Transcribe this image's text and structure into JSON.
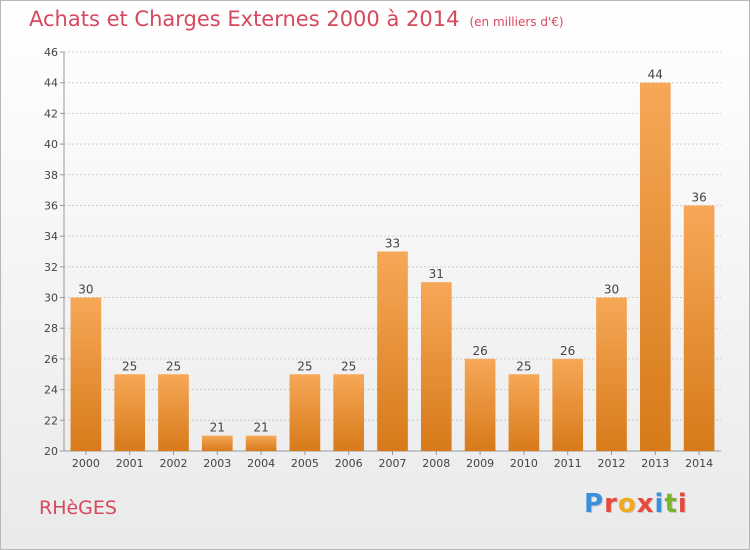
{
  "header": {
    "title": "Achats et Charges Externes 2000 à 2014",
    "subtitle": "(en milliers d'€)"
  },
  "footer": {
    "commune": "RHèGES",
    "logo_letters": [
      "P",
      "r",
      "o",
      "x",
      "i",
      "t",
      "i"
    ],
    "logo_colors": [
      "#3a8fd9",
      "#e8483c",
      "#f2a81c",
      "#e8483c",
      "#3a8fd9",
      "#7bb32e",
      "#e8483c"
    ]
  },
  "colors": {
    "bar_top": "#f6a857",
    "bar_bottom": "#d77a1a",
    "grid": "#cccccc",
    "axis": "#999999",
    "accent": "#d6485e"
  },
  "chart_data": {
    "type": "bar",
    "title": "Achats et Charges Externes 2000 à 2014",
    "subtitle": "(en milliers d'€)",
    "xlabel": "",
    "ylabel": "",
    "categories": [
      "2000",
      "2001",
      "2002",
      "2003",
      "2004",
      "2005",
      "2006",
      "2007",
      "2008",
      "2009",
      "2010",
      "2011",
      "2012",
      "2013",
      "2014"
    ],
    "values": [
      30,
      25,
      25,
      21,
      21,
      25,
      25,
      33,
      31,
      26,
      25,
      26,
      30,
      44,
      36
    ],
    "ylim": [
      20,
      46
    ],
    "yticks": [
      20,
      22,
      24,
      26,
      28,
      30,
      32,
      34,
      36,
      38,
      40,
      42,
      44,
      46
    ],
    "grid": true,
    "legend": "none"
  }
}
